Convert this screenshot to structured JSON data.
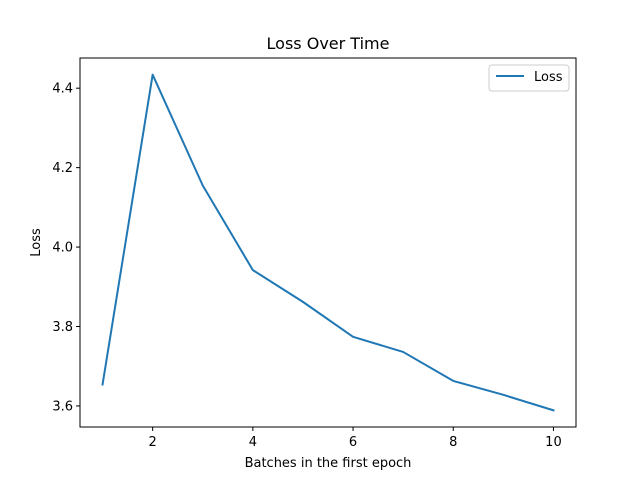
{
  "chart_data": {
    "type": "line",
    "title": "Loss Over Time",
    "xlabel": "Batches in the first epoch",
    "ylabel": "Loss",
    "x": [
      1,
      2,
      3,
      4,
      5,
      6,
      7,
      8,
      9,
      10
    ],
    "series": [
      {
        "name": "Loss",
        "color": "#1f77b4",
        "values": [
          3.654,
          4.434,
          4.155,
          3.942,
          3.862,
          3.774,
          3.736,
          3.663,
          3.628,
          3.589
        ]
      }
    ],
    "xlim": [
      0.55,
      10.45
    ],
    "ylim": [
      3.547,
      4.476
    ],
    "xticks": [
      2,
      4,
      6,
      8,
      10
    ],
    "xtick_labels": [
      "2",
      "4",
      "6",
      "8",
      "10"
    ],
    "yticks": [
      3.6,
      3.8,
      4.0,
      4.2,
      4.4
    ],
    "ytick_labels": [
      "3.6",
      "3.8",
      "4.0",
      "4.2",
      "4.4"
    ],
    "grid": false,
    "legend_position": "upper right"
  }
}
